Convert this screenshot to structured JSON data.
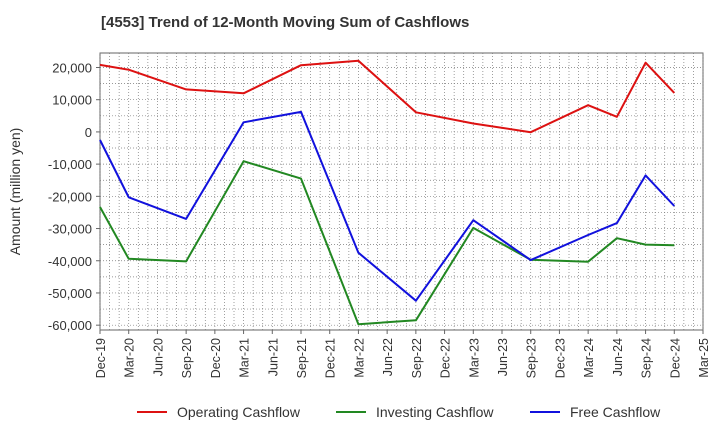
{
  "chart_data": {
    "type": "line",
    "title": "[4553]  Trend of 12-Month Moving Sum of Cashflows",
    "xlabel": "",
    "ylabel": "Amount (million yen)",
    "x_tick_labels": [
      "Dec-19",
      "Mar-20",
      "Jun-20",
      "Sep-20",
      "Dec-20",
      "Mar-21",
      "Jun-21",
      "Sep-21",
      "Dec-21",
      "Mar-22",
      "Jun-22",
      "Sep-22",
      "Dec-22",
      "Mar-23",
      "Jun-23",
      "Sep-23",
      "Dec-23",
      "Mar-24",
      "Jun-24",
      "Sep-24",
      "Dec-24",
      "Mar-25"
    ],
    "y_tick_labels": [
      "20,000",
      "10,000",
      "0",
      "-10,000",
      "-20,000",
      "-30,000",
      "-40,000",
      "-50,000",
      "-60,000"
    ],
    "y_ticks": [
      20000,
      10000,
      0,
      -10000,
      -20000,
      -30000,
      -40000,
      -50000,
      -60000
    ],
    "ylim": [
      -61500,
      24500
    ],
    "grid": true,
    "legend_position": "bottom",
    "series": [
      {
        "name": "Operating Cashflow",
        "color": "#dd1111",
        "x": [
          "Dec-19",
          "Mar-20",
          "Sep-20",
          "Mar-21",
          "Sep-21",
          "Mar-22",
          "Sep-22",
          "Mar-23",
          "Sep-23",
          "Mar-24",
          "Jun-24",
          "Sep-24",
          "Dec-24"
        ],
        "values": [
          20800,
          19300,
          13200,
          12000,
          20700,
          22100,
          6100,
          2600,
          -100,
          8300,
          4700,
          21500,
          12100
        ]
      },
      {
        "name": "Investing Cashflow",
        "color": "#228822",
        "x": [
          "Dec-19",
          "Mar-20",
          "Sep-20",
          "Mar-21",
          "Sep-21",
          "Mar-22",
          "Sep-22",
          "Mar-23",
          "Sep-23",
          "Mar-24",
          "Jun-24",
          "Sep-24",
          "Dec-24"
        ],
        "values": [
          -23300,
          -39400,
          -40200,
          -9100,
          -14500,
          -59700,
          -58500,
          -29800,
          -39700,
          -40300,
          -33000,
          -35000,
          -35200
        ]
      },
      {
        "name": "Free Cashflow",
        "color": "#1111dd",
        "x": [
          "Dec-19",
          "Mar-20",
          "Sep-20",
          "Mar-21",
          "Sep-21",
          "Mar-22",
          "Sep-22",
          "Mar-23",
          "Sep-23",
          "Mar-24",
          "Jun-24",
          "Sep-24",
          "Dec-24"
        ],
        "values": [
          -2500,
          -20300,
          -27000,
          3000,
          6200,
          -37500,
          -52400,
          -27400,
          -39800,
          -32000,
          -28300,
          -13500,
          -23000
        ]
      }
    ]
  }
}
